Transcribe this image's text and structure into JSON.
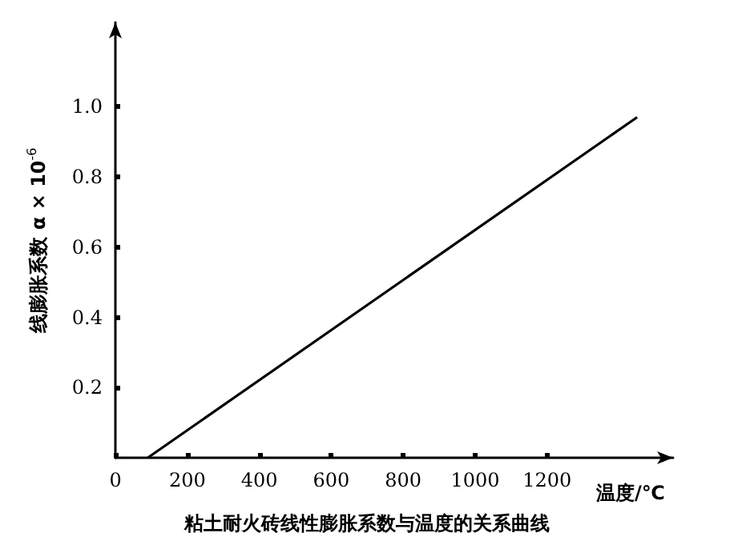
{
  "chart_data": {
    "type": "line",
    "title": "粘土耐火砖线性膨胀系数与温度的关系曲线",
    "xlabel": "温度/℃",
    "ylabel": "线膨胀系数 α × 10$^{-6}$",
    "x": [
      90,
      1450
    ],
    "series": [
      {
        "color": "#000000",
        "values": [
          0,
          0.97
        ]
      }
    ],
    "xlim": [
      0,
      1550
    ],
    "xticks": [
      0,
      200,
      400,
      600,
      800,
      1000,
      1200
    ],
    "ylim": [
      0,
      1.24
    ],
    "yticks": [
      {
        "value": 0.2,
        "label": "0.2"
      },
      {
        "value": 0.4,
        "label": "0.4"
      },
      {
        "value": 0.6,
        "label": "0.6"
      },
      {
        "value": 0.8,
        "label": "0.8"
      },
      {
        "value": 1.0,
        "label": "1.0"
      }
    ],
    "grid": false,
    "marker": "none",
    "line_style": "solid"
  }
}
